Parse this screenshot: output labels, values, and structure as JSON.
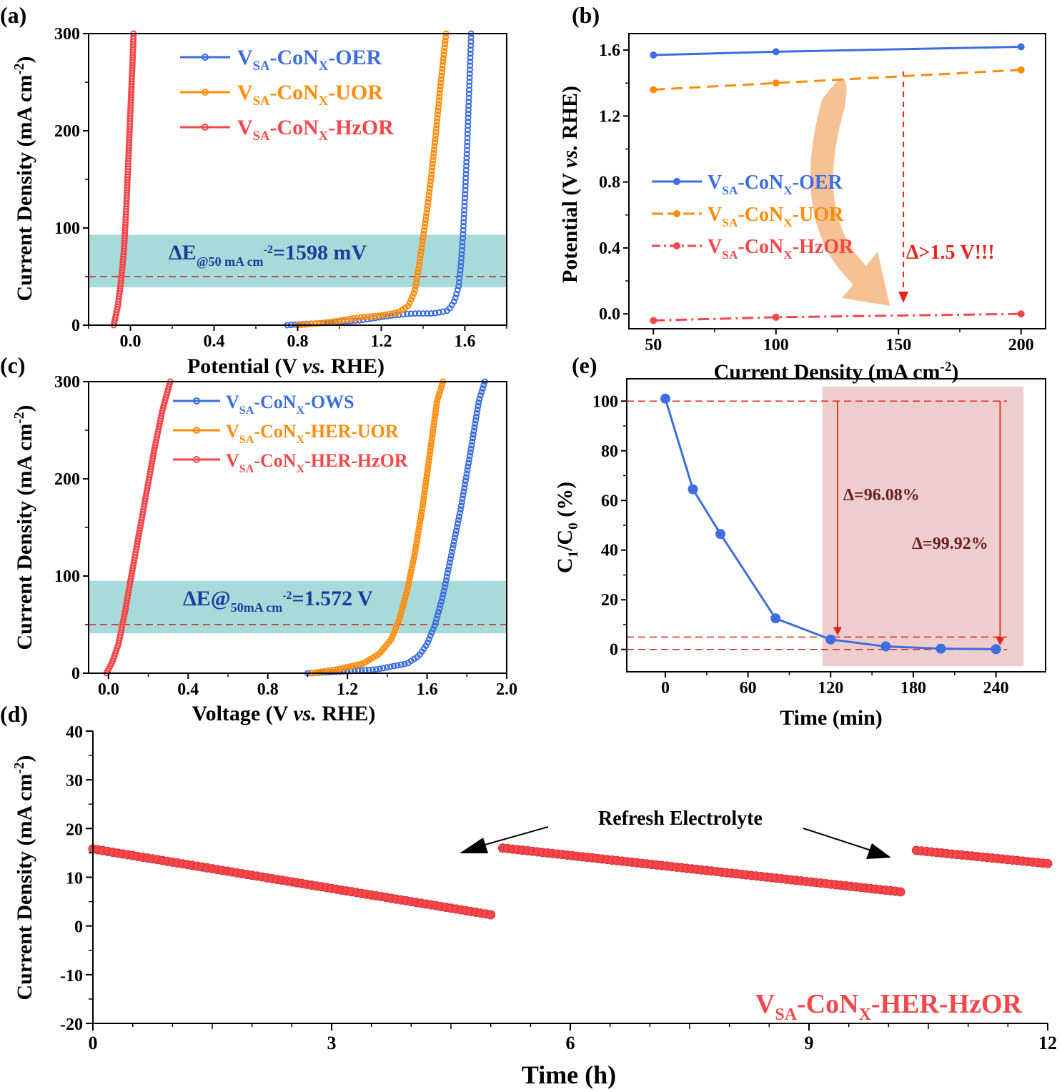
{
  "colors": {
    "blue": "#3d6de0",
    "orange": "#ff8c0a",
    "red": "#f5474b",
    "teal_band": "#5fbdbb",
    "pink_band": "#e6b8b8",
    "annotation_red": "#e8231a",
    "dark_annotation": "#6b2020",
    "arrow_fill": "#f3b27a"
  },
  "chart_data": [
    {
      "id": "a",
      "panel_label": "(a)",
      "type": "line",
      "xlabel": "Potential (V ",
      "xlabel_italic": "vs.",
      "xlabel_tail": " RHE)",
      "ylabel": "Current Density (mA cm",
      "ylabel_sup": "-2",
      "ylabel_tail": ")",
      "xlim": [
        -0.2,
        1.8
      ],
      "ylim": [
        0,
        300
      ],
      "xticks": [
        "0.0",
        "0.4",
        "0.8",
        "1.2",
        "1.6"
      ],
      "xtick_values": [
        0.0,
        0.4,
        0.8,
        1.2,
        1.6
      ],
      "yticks": [
        "0",
        "100",
        "200",
        "300"
      ],
      "ytick_values": [
        0,
        100,
        200,
        300
      ],
      "series": [
        {
          "name_main": "V",
          "name_sub": "SA",
          "name_mid": "-CoN",
          "name_sub2": "X",
          "name_tail": "-OER",
          "color": "blue",
          "x": [
            0.75,
            0.9,
            1.1,
            1.25,
            1.35,
            1.45,
            1.52,
            1.55,
            1.57,
            1.58,
            1.59,
            1.6,
            1.61,
            1.62,
            1.63
          ],
          "y": [
            0,
            2,
            5,
            10,
            12,
            12,
            15,
            25,
            40,
            60,
            90,
            130,
            180,
            240,
            300
          ]
        },
        {
          "name_main": "V",
          "name_sub": "SA",
          "name_mid": "-CoN",
          "name_sub2": "X",
          "name_tail": "-UOR",
          "color": "orange",
          "x": [
            0.8,
            0.95,
            1.1,
            1.2,
            1.28,
            1.33,
            1.36,
            1.38,
            1.4,
            1.42,
            1.44,
            1.46,
            1.48,
            1.5,
            1.51
          ],
          "y": [
            0,
            3,
            8,
            10,
            13,
            20,
            35,
            60,
            90,
            120,
            155,
            195,
            240,
            280,
            300
          ]
        },
        {
          "name_main": "V",
          "name_sub": "SA",
          "name_mid": "-CoN",
          "name_sub2": "X",
          "name_tail": "-HzOR",
          "color": "red",
          "x": [
            -0.08,
            -0.06,
            -0.045,
            -0.03,
            -0.02,
            -0.01,
            0.0,
            0.01,
            0.015
          ],
          "y": [
            0,
            20,
            45,
            80,
            120,
            170,
            220,
            270,
            300
          ]
        }
      ],
      "band": {
        "y": [
          39,
          93
        ]
      },
      "dashed_y": 50,
      "annotation_main": "ΔE",
      "annotation_sub": "@50 mA cm",
      "annotation_sup": "-2",
      "annotation_tail": "=1598 mV"
    },
    {
      "id": "b",
      "panel_label": "(b)",
      "type": "line",
      "xlabel": "Current Density (mA cm",
      "xlabel_sup": "-2",
      "xlabel_tail": ")",
      "ylabel": "Potential (V ",
      "ylabel_italic": "vs.",
      "ylabel_tail": " RHE)",
      "xlim": [
        40,
        210
      ],
      "ylim": [
        -0.09,
        1.7
      ],
      "xticks": [
        "50",
        "100",
        "150",
        "200"
      ],
      "xtick_values": [
        50,
        100,
        150,
        200
      ],
      "yticks": [
        "0.0",
        "0.4",
        "0.8",
        "1.2",
        "1.6"
      ],
      "ytick_values": [
        0.0,
        0.4,
        0.8,
        1.2,
        1.6
      ],
      "series": [
        {
          "name_main": "V",
          "name_sub": "SA",
          "name_mid": "-CoN",
          "name_sub2": "X",
          "name_tail": "-OER",
          "color": "blue",
          "dash": "none",
          "x": [
            50,
            100,
            200
          ],
          "y": [
            1.57,
            1.59,
            1.62
          ]
        },
        {
          "name_main": "V",
          "name_sub": "SA",
          "name_mid": "-CoN",
          "name_sub2": "X",
          "name_tail": "-UOR",
          "color": "orange",
          "dash": "16,9",
          "x": [
            50,
            100,
            200
          ],
          "y": [
            1.36,
            1.4,
            1.48
          ]
        },
        {
          "name_main": "V",
          "name_sub": "SA",
          "name_mid": "-CoN",
          "name_sub2": "X",
          "name_tail": "-HzOR",
          "color": "red",
          "dash": "16,6,3,6",
          "x": [
            50,
            100,
            200
          ],
          "y": [
            -0.04,
            -0.02,
            0.0
          ]
        }
      ],
      "annotation": "Δ>1.5 V!!!",
      "vline_x": 152
    },
    {
      "id": "c",
      "panel_label": "(c)",
      "type": "line",
      "xlabel": "Voltage (V ",
      "xlabel_italic": "vs.",
      "xlabel_tail": " RHE)",
      "ylabel": "Current Density (mA cm",
      "ylabel_sup": "-2",
      "ylabel_tail": ")",
      "xlim": [
        -0.1,
        2.0
      ],
      "ylim": [
        0,
        300
      ],
      "xticks": [
        "0.0",
        "0.4",
        "0.8",
        "1.2",
        "1.6",
        "2.0"
      ],
      "xtick_values": [
        0.0,
        0.4,
        0.8,
        1.2,
        1.6,
        2.0
      ],
      "yticks": [
        "0",
        "100",
        "200",
        "300"
      ],
      "ytick_values": [
        0,
        100,
        200,
        300
      ],
      "series": [
        {
          "name_main": "V",
          "name_sub": "SA",
          "name_mid": "-CoN",
          "name_sub2": "X",
          "name_tail": "-OWS",
          "color": "blue",
          "x": [
            1.0,
            1.2,
            1.35,
            1.5,
            1.56,
            1.6,
            1.64,
            1.68,
            1.72,
            1.77,
            1.82,
            1.86,
            1.89
          ],
          "y": [
            0,
            2,
            4,
            10,
            18,
            30,
            50,
            80,
            120,
            170,
            230,
            280,
            300
          ]
        },
        {
          "name_main": "V",
          "name_sub": "SA",
          "name_mid": "-CoN",
          "name_sub2": "X",
          "name_tail": "-HER-UOR",
          "color": "orange",
          "x": [
            1.02,
            1.15,
            1.28,
            1.36,
            1.42,
            1.46,
            1.5,
            1.54,
            1.58,
            1.62,
            1.65,
            1.68
          ],
          "y": [
            0,
            4,
            10,
            20,
            35,
            55,
            85,
            125,
            175,
            235,
            280,
            300
          ]
        },
        {
          "name_main": "V",
          "name_sub": "SA",
          "name_mid": "-CoN",
          "name_sub2": "X",
          "name_tail": "-HER-HzOR",
          "color": "red",
          "x": [
            -0.01,
            0.02,
            0.05,
            0.08,
            0.11,
            0.15,
            0.19,
            0.23,
            0.27,
            0.31
          ],
          "y": [
            0,
            12,
            30,
            60,
            95,
            140,
            185,
            230,
            270,
            300
          ]
        }
      ],
      "band": {
        "y": [
          41,
          95
        ]
      },
      "dashed_y": 50,
      "annotation_main": "ΔE@",
      "annotation_sub": "50mA cm",
      "annotation_sup": "-2",
      "annotation_tail": "=1.572 V"
    },
    {
      "id": "e",
      "panel_label": "(e)",
      "type": "line",
      "xlabel": "Time (min)",
      "ylabel_main": "C",
      "ylabel_sub1": "1",
      "ylabel_mid": "/C",
      "ylabel_sub2": "0",
      "ylabel_tail": " (%)",
      "xlim": [
        -28,
        276
      ],
      "ylim": [
        -9,
        109
      ],
      "xticks": [
        "0",
        "60",
        "120",
        "180",
        "240"
      ],
      "xtick_values": [
        0,
        60,
        120,
        180,
        240
      ],
      "yticks": [
        "0",
        "20",
        "40",
        "60",
        "80",
        "100"
      ],
      "ytick_values": [
        0,
        20,
        40,
        60,
        80,
        100
      ],
      "series": [
        {
          "color": "blue",
          "x": [
            0,
            20,
            40,
            80,
            120,
            160,
            200,
            240
          ],
          "y": [
            101,
            64.5,
            46.5,
            12.5,
            4,
            1.2,
            0.3,
            0.1
          ]
        }
      ],
      "dashed_y": [
        100,
        5,
        0
      ],
      "band": {
        "x": [
          114,
          260
        ]
      },
      "annotation_1": "Δ=96.08%",
      "annotation_2": "Δ=99.92%"
    },
    {
      "id": "d",
      "panel_label": "(d)",
      "type": "scatter",
      "xlabel": "Time (h)",
      "ylabel": "Current Density (mA cm",
      "ylabel_sup": "-2",
      "ylabel_tail": ")",
      "xlim": [
        0,
        12
      ],
      "ylim": [
        -20,
        40
      ],
      "xticks": [
        "0",
        "3",
        "6",
        "9",
        "12"
      ],
      "xtick_values": [
        0,
        3,
        6,
        9,
        12
      ],
      "yticks": [
        "-20",
        "-10",
        "0",
        "10",
        "20",
        "30",
        "40"
      ],
      "ytick_values": [
        -20,
        -10,
        0,
        10,
        20,
        30,
        40
      ],
      "segments": [
        {
          "x_start": 0.0,
          "x_end": 5.0,
          "y_start": 15.8,
          "y_end": 2.3
        },
        {
          "x_start": 5.15,
          "x_end": 10.15,
          "y_start": 16.0,
          "y_end": 7.0
        },
        {
          "x_start": 10.35,
          "x_end": 12.0,
          "y_start": 15.5,
          "y_end": 12.8
        }
      ],
      "annotation": "Refresh Electrolyte",
      "series_label_main": "V",
      "series_label_sub": "SA",
      "series_label_mid": "-CoN",
      "series_label_sub2": "X",
      "series_label_tail": "-HER-HzOR"
    }
  ]
}
